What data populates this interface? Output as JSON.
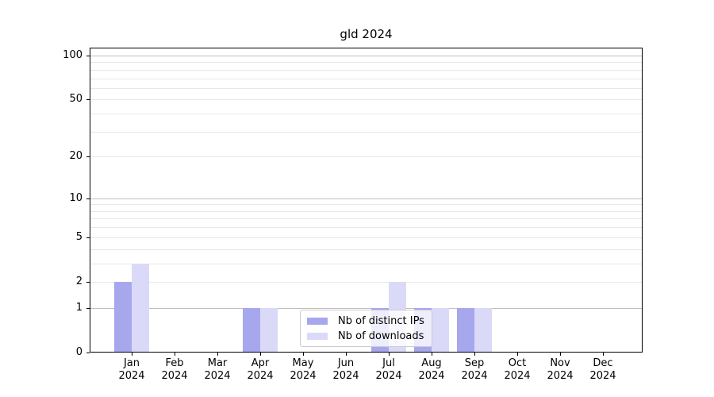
{
  "chart_data": {
    "type": "bar",
    "title": "gld 2024",
    "x_categories": [
      "Jan",
      "Feb",
      "Mar",
      "Apr",
      "May",
      "Jun",
      "Jul",
      "Aug",
      "Sep",
      "Oct",
      "Nov",
      "Dec"
    ],
    "x_year": "2024",
    "series": [
      {
        "name": "Nb of distinct IPs",
        "color": "#a7a7ed",
        "values": [
          2,
          0,
          0,
          1,
          0,
          0,
          1,
          1,
          1,
          0,
          0,
          0
        ]
      },
      {
        "name": "Nb of downloads",
        "color": "#dadaf8",
        "values": [
          3,
          0,
          0,
          1,
          0,
          0,
          2,
          1,
          1,
          0,
          0,
          0
        ]
      }
    ],
    "y_ticks": [
      0,
      1,
      2,
      5,
      10,
      20,
      50,
      100
    ],
    "y_scale": "log10(1+y)",
    "ylim": [
      0,
      113
    ],
    "grid": "both",
    "major_grid_values": [
      1,
      10,
      100
    ],
    "minor_grid_values": [
      2,
      3,
      4,
      5,
      6,
      7,
      8,
      9,
      20,
      30,
      40,
      50,
      60,
      70,
      80,
      90
    ],
    "legend_position": "lower center inside",
    "colors": {
      "major_grid": "#c0c0c0",
      "minor_grid": "#e8e8e8",
      "axis": "#000000",
      "background": "#ffffff"
    }
  }
}
